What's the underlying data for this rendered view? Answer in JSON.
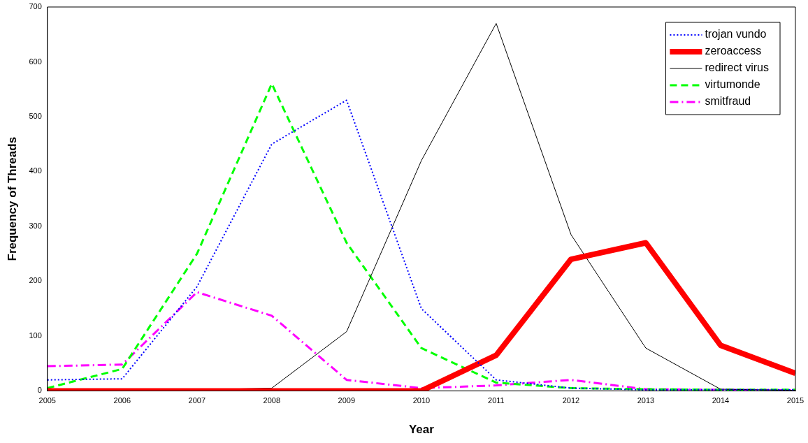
{
  "chart_data": {
    "type": "line",
    "xlabel": "Year",
    "ylabel": "Frequency of Threads",
    "x": [
      2005,
      2006,
      2007,
      2008,
      2009,
      2010,
      2011,
      2012,
      2013,
      2014,
      2015
    ],
    "xlim": [
      2005,
      2015
    ],
    "xticks": [
      2005,
      2006,
      2007,
      2008,
      2009,
      2010,
      2011,
      2012,
      2013,
      2014,
      2015
    ],
    "ylim": [
      0,
      700
    ],
    "yticks": [
      0,
      100,
      200,
      300,
      400,
      500,
      600,
      700
    ],
    "legend": "top right",
    "grid": false,
    "marker": "none",
    "series": [
      {
        "name": "trojan vundo",
        "color": "#0000ff",
        "line_style": "dotted",
        "values": [
          20,
          22,
          190,
          450,
          530,
          150,
          20,
          5,
          2,
          2,
          2
        ]
      },
      {
        "name": "zeroaccess",
        "color": "#ff0000",
        "line_style": "solid",
        "values": [
          0,
          0,
          0,
          0,
          0,
          0,
          65,
          240,
          270,
          83,
          32
        ]
      },
      {
        "name": "redirect virus",
        "color": "#000000",
        "line_style": "solid",
        "values": [
          0,
          0,
          2,
          5,
          108,
          420,
          670,
          285,
          78,
          3,
          1
        ]
      },
      {
        "name": "virtumonde",
        "color": "#00ff00",
        "line_style": "dashed",
        "values": [
          5,
          40,
          250,
          560,
          270,
          78,
          15,
          5,
          3,
          2,
          2
        ]
      },
      {
        "name": "smitfraud",
        "color": "#ff00ff",
        "line_style": "dashdot",
        "values": [
          45,
          48,
          180,
          137,
          20,
          5,
          10,
          20,
          3,
          2,
          1
        ]
      }
    ]
  }
}
